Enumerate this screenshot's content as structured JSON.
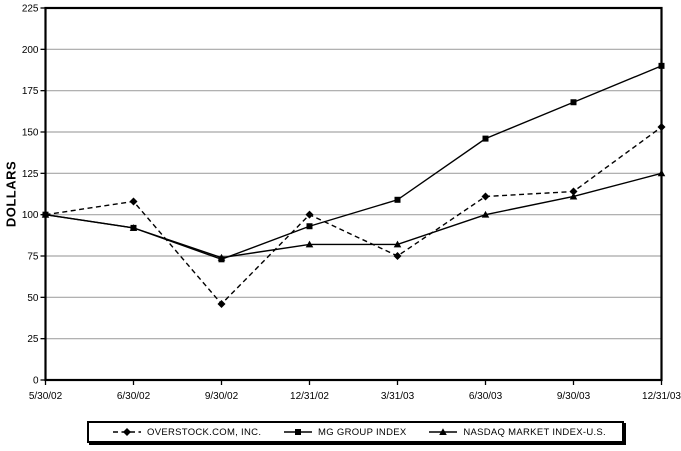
{
  "chart_data": {
    "type": "line",
    "title": "",
    "ylabel": "DOLLARS",
    "xlabel": "",
    "ylim": [
      0,
      225
    ],
    "yticks": [
      0,
      25,
      50,
      75,
      100,
      125,
      150,
      175,
      200,
      225
    ],
    "grid": "horizontal",
    "legend_position": "bottom",
    "categories": [
      "5/30/02",
      "6/30/02",
      "9/30/02",
      "12/31/02",
      "3/31/03",
      "6/30/03",
      "9/30/03",
      "12/31/03"
    ],
    "series": [
      {
        "name": "OVERSTOCK.COM, INC.",
        "marker": "diamond",
        "line_style": "dashed",
        "color": "#000000",
        "values": [
          100,
          108,
          46,
          100,
          75,
          111,
          114,
          153
        ]
      },
      {
        "name": "MG GROUP INDEX",
        "marker": "square",
        "line_style": "solid",
        "color": "#000000",
        "values": [
          100,
          92,
          73,
          93,
          109,
          146,
          168,
          190
        ]
      },
      {
        "name": "NASDAQ MARKET INDEX-U.S.",
        "marker": "triangle",
        "line_style": "solid",
        "color": "#000000",
        "values": [
          100,
          92,
          74,
          82,
          82,
          100,
          111,
          125
        ]
      }
    ],
    "colors": {
      "background": "#ffffff",
      "grid": "#a6a6a6",
      "frame": "#000000",
      "line": "#000000",
      "text": "#000000"
    }
  }
}
